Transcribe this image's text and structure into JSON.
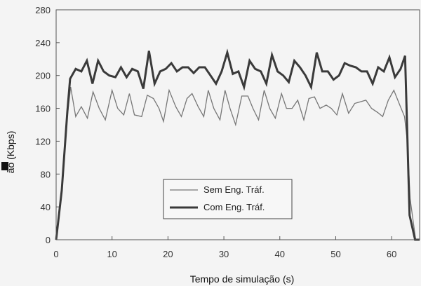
{
  "chart_data": {
    "type": "line",
    "title": "",
    "xlabel": "Tempo de simulação (s)",
    "ylabel": "ão (Kbps)",
    "xlim": [
      0,
      65
    ],
    "ylim": [
      0,
      280
    ],
    "xticks": [
      0,
      10,
      20,
      30,
      40,
      50,
      60
    ],
    "yticks": [
      0,
      40,
      80,
      120,
      160,
      200,
      240,
      280
    ],
    "grid": false,
    "legend_position": "center-right",
    "colors": {
      "sem": "#777777",
      "com": "#3a3a3a",
      "axis": "#555555"
    },
    "series": [
      {
        "name": "Sem Eng. Tráf.",
        "x": [
          0,
          1,
          2,
          2.6,
          3.5,
          4.5,
          5.6,
          6.6,
          7.7,
          8.8,
          10,
          11,
          12.1,
          13.1,
          14,
          15.3,
          16.3,
          17.4,
          18.4,
          19.2,
          20.2,
          21.4,
          22.4,
          23.4,
          24.3,
          25.4,
          26.4,
          27.2,
          28.2,
          29.3,
          30.2,
          31.1,
          32.1,
          33.2,
          34.3,
          35.2,
          36.2,
          37.2,
          38.2,
          39.2,
          40.3,
          41.2,
          42.2,
          43.2,
          44.3,
          45.2,
          46.2,
          47.2,
          48.3,
          49.2,
          50.2,
          51.2,
          52.3,
          53.4,
          54.4,
          55.4,
          56.4,
          57.5,
          58.4,
          59.4,
          60.4,
          61.4,
          62.3,
          62.8,
          63.3,
          64.3,
          65
        ],
        "values": [
          0,
          60,
          150,
          186,
          150,
          162,
          148,
          180,
          160,
          146,
          182,
          160,
          152,
          178,
          152,
          150,
          176,
          172,
          160,
          144,
          182,
          162,
          150,
          172,
          178,
          162,
          150,
          182,
          160,
          146,
          182,
          160,
          140,
          175,
          175,
          160,
          146,
          182,
          160,
          148,
          178,
          160,
          160,
          170,
          146,
          172,
          174,
          160,
          164,
          160,
          152,
          178,
          154,
          166,
          168,
          170,
          160,
          155,
          150,
          170,
          182,
          165,
          150,
          120,
          50,
          0,
          0
        ]
      },
      {
        "name": "Com Eng. Tráf.",
        "x": [
          0,
          1,
          2,
          2.5,
          3.5,
          4.5,
          5.5,
          6.5,
          7.5,
          8.5,
          9.5,
          10.6,
          11.6,
          12.6,
          13.6,
          14.6,
          15.6,
          16.6,
          17.6,
          18.6,
          19.6,
          20.6,
          21.6,
          22.6,
          23.6,
          24.6,
          25.6,
          26.6,
          27.6,
          28.6,
          29.6,
          30.6,
          31.6,
          32.6,
          33.6,
          34.6,
          35.6,
          36.6,
          37.6,
          38.6,
          39.6,
          40.6,
          41.6,
          42.6,
          43.6,
          44.6,
          45.6,
          46.6,
          47.6,
          48.6,
          49.6,
          50.6,
          51.6,
          52.6,
          53.6,
          54.6,
          55.6,
          56.6,
          57.6,
          58.6,
          59.6,
          60.6,
          61.6,
          62.4,
          63.2,
          64.2,
          65
        ],
        "values": [
          0,
          60,
          155,
          196,
          208,
          205,
          218,
          190,
          218,
          205,
          200,
          198,
          210,
          198,
          208,
          205,
          184,
          230,
          190,
          205,
          208,
          215,
          205,
          210,
          210,
          203,
          210,
          210,
          200,
          190,
          205,
          228,
          202,
          205,
          186,
          218,
          208,
          205,
          190,
          225,
          205,
          200,
          192,
          218,
          210,
          200,
          186,
          228,
          205,
          205,
          195,
          200,
          215,
          212,
          210,
          205,
          205,
          190,
          210,
          205,
          222,
          198,
          208,
          224,
          30,
          0,
          0
        ]
      }
    ]
  }
}
